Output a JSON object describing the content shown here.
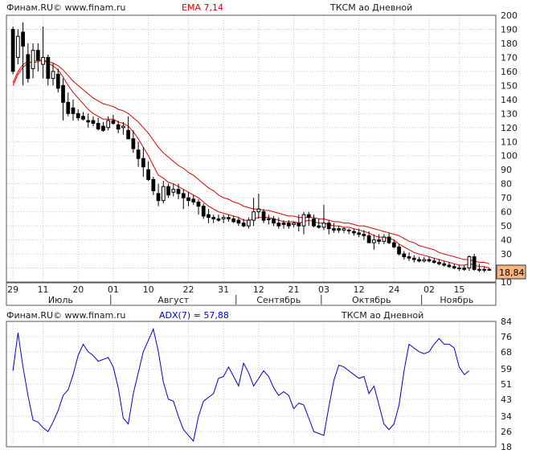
{
  "price_panel": {
    "source_label": "Финам.RU© www.finam.ru",
    "indicator_label": "EMA 7,14",
    "ticker_label": "ТКСМ ао Дневной",
    "last_value": "18,84",
    "colors": {
      "ema_fast": "#e00000",
      "ema_slow": "#e00000",
      "candle": "#000000",
      "grid": "#c8c8c8"
    }
  },
  "adx_panel": {
    "source_label": "Финам.RU© www.finam.ru",
    "indicator_label": "ADX(7) = 57,88",
    "ticker_label": "ТКСМ ао Дневной",
    "colors": {
      "line": "#0000cc",
      "grid": "#c8c8c8"
    }
  },
  "chart_data": [
    {
      "type": "candlestick",
      "title": "ТКСМ ао Дневной",
      "ylim": [
        10,
        200
      ],
      "yticks": [
        10,
        20,
        30,
        40,
        50,
        60,
        70,
        80,
        90,
        100,
        110,
        120,
        130,
        140,
        150,
        160,
        170,
        180,
        190,
        200
      ],
      "ytick_labels": [
        "10",
        "20",
        "30",
        "40",
        "50",
        "60",
        "70",
        "80",
        "90",
        "100",
        "110",
        "120",
        "130",
        "140",
        "150",
        "160",
        "170",
        "180",
        "190",
        "200"
      ],
      "day_ticks": [
        {
          "index": 0,
          "label": "29"
        },
        {
          "index": 6,
          "label": "11"
        },
        {
          "index": 13,
          "label": "20"
        },
        {
          "index": 20,
          "label": "01"
        },
        {
          "index": 27,
          "label": "10"
        },
        {
          "index": 35,
          "label": "22"
        },
        {
          "index": 42,
          "label": "31"
        },
        {
          "index": 49,
          "label": "12"
        },
        {
          "index": 56,
          "label": "21"
        },
        {
          "index": 62,
          "label": "03"
        },
        {
          "index": 69,
          "label": "12"
        },
        {
          "index": 76,
          "label": "24"
        },
        {
          "index": 83,
          "label": "02"
        },
        {
          "index": 89,
          "label": "15"
        }
      ],
      "month_labels": [
        {
          "start": 0,
          "end": 20,
          "label": "Июль"
        },
        {
          "start": 20,
          "end": 45,
          "label": "Август"
        },
        {
          "start": 45,
          "end": 62,
          "label": "Сентябрь"
        },
        {
          "start": 62,
          "end": 82,
          "label": "Октябрь"
        },
        {
          "start": 82,
          "end": 96,
          "label": "Ноябрь"
        }
      ],
      "last_value": 18.84,
      "candles": [
        [
          190,
          192,
          158,
          160
        ],
        [
          170,
          190,
          165,
          185
        ],
        [
          188,
          195,
          150,
          178
        ],
        [
          172,
          180,
          152,
          155
        ],
        [
          162,
          180,
          155,
          175
        ],
        [
          175,
          180,
          160,
          168
        ],
        [
          165,
          192,
          155,
          170
        ],
        [
          170,
          172,
          150,
          155
        ],
        [
          155,
          166,
          150,
          160
        ],
        [
          158,
          162,
          145,
          148
        ],
        [
          150,
          155,
          125,
          138
        ],
        [
          138,
          145,
          128,
          130
        ],
        [
          134,
          140,
          125,
          130
        ],
        [
          130,
          133,
          125,
          127
        ],
        [
          128,
          131,
          125,
          126
        ],
        [
          125,
          130,
          120,
          124
        ],
        [
          125,
          128,
          121,
          123
        ],
        [
          123,
          127,
          118,
          119
        ],
        [
          121,
          124,
          117,
          118
        ],
        [
          120,
          128,
          118,
          125
        ],
        [
          125,
          129,
          122,
          123
        ],
        [
          122,
          125,
          116,
          119
        ],
        [
          120,
          124,
          115,
          121
        ],
        [
          118,
          128,
          112,
          112
        ],
        [
          112,
          118,
          102,
          105
        ],
        [
          104,
          110,
          92,
          98
        ],
        [
          98,
          106,
          85,
          92
        ],
        [
          90,
          96,
          82,
          83
        ],
        [
          83,
          85,
          72,
          75
        ],
        [
          73,
          80,
          64,
          68
        ],
        [
          68,
          82,
          66,
          78
        ],
        [
          78,
          80,
          70,
          72
        ],
        [
          74,
          80,
          71,
          76
        ],
        [
          76,
          80,
          69,
          73
        ],
        [
          73,
          76,
          62,
          70
        ],
        [
          70,
          74,
          64,
          68
        ],
        [
          69,
          72,
          65,
          67
        ],
        [
          67,
          69,
          58,
          64
        ],
        [
          64,
          66,
          55,
          57
        ],
        [
          58,
          62,
          52,
          56
        ],
        [
          56,
          58,
          52,
          55
        ],
        [
          55,
          58,
          53,
          54
        ],
        [
          55,
          58,
          52,
          56
        ],
        [
          56,
          58,
          53,
          55
        ],
        [
          55,
          57,
          52,
          53
        ],
        [
          54,
          56,
          50,
          52
        ],
        [
          52,
          55,
          49,
          50
        ],
        [
          50,
          56,
          48,
          54
        ],
        [
          54,
          70,
          50,
          60
        ],
        [
          60,
          73,
          55,
          62
        ],
        [
          60,
          62,
          52,
          54
        ],
        [
          55,
          58,
          51,
          55
        ],
        [
          55,
          57,
          50,
          52
        ],
        [
          52,
          56,
          48,
          50
        ],
        [
          52,
          54,
          48,
          51
        ],
        [
          52,
          54,
          48,
          50
        ],
        [
          51,
          53,
          49,
          52
        ],
        [
          52,
          58,
          46,
          50
        ],
        [
          50,
          60,
          44,
          58
        ],
        [
          58,
          60,
          50,
          56
        ],
        [
          55,
          58,
          49,
          50
        ],
        [
          50,
          55,
          48,
          49
        ],
        [
          49,
          65,
          47,
          52
        ],
        [
          52,
          54,
          44,
          48
        ],
        [
          48,
          52,
          45,
          47
        ],
        [
          48,
          50,
          45,
          47
        ],
        [
          47,
          49,
          45,
          48
        ],
        [
          47,
          48,
          44,
          47
        ],
        [
          46,
          48,
          43,
          45
        ],
        [
          45,
          48,
          42,
          44
        ],
        [
          44,
          47,
          40,
          43
        ],
        [
          43,
          46,
          38,
          38
        ],
        [
          38,
          44,
          33,
          40
        ],
        [
          40,
          44,
          37,
          39
        ],
        [
          39,
          44,
          37,
          42
        ],
        [
          42,
          45,
          37,
          38
        ],
        [
          38,
          40,
          34,
          35
        ],
        [
          35,
          37,
          29,
          30
        ],
        [
          30,
          32,
          26,
          28
        ],
        [
          28,
          31,
          25,
          27
        ],
        [
          27,
          29,
          24,
          26
        ],
        [
          26,
          28,
          24,
          25
        ],
        [
          25,
          28,
          24,
          26
        ],
        [
          26,
          28,
          24,
          25
        ],
        [
          25,
          27,
          23,
          24
        ],
        [
          24,
          26,
          22,
          23
        ],
        [
          23,
          25,
          21,
          22
        ],
        [
          22,
          24,
          20,
          21
        ],
        [
          21,
          23,
          19,
          20
        ],
        [
          20,
          22,
          18,
          20
        ],
        [
          20,
          22,
          18,
          19
        ],
        [
          20,
          29,
          18,
          28
        ],
        [
          28,
          30,
          18,
          19
        ],
        [
          19,
          23,
          17,
          19
        ],
        [
          19,
          21,
          17,
          19
        ],
        [
          19,
          20,
          18,
          18.84
        ]
      ],
      "series": [
        {
          "name": "EMA 7",
          "values": [
            152,
            160,
            165,
            167,
            166,
            167,
            168,
            166,
            164,
            161,
            156,
            150,
            145,
            141,
            137,
            133,
            130,
            128,
            126,
            126,
            126,
            124,
            123,
            121,
            117,
            112,
            106,
            100,
            93,
            86,
            84,
            81,
            80,
            78,
            76,
            74,
            72,
            70,
            67,
            64,
            62,
            60,
            59,
            58,
            57,
            56,
            54,
            54,
            55,
            56,
            56,
            56,
            55,
            54,
            53,
            53,
            53,
            52,
            53,
            54,
            53,
            52,
            52,
            51,
            50,
            50,
            49,
            49,
            48,
            47,
            46,
            45,
            43,
            42,
            42,
            41,
            40,
            37,
            35,
            33,
            31,
            30,
            29,
            28,
            27,
            26,
            25,
            24,
            23,
            22,
            22,
            23,
            22,
            21,
            21,
            20
          ]
        },
        {
          "name": "EMA 14",
          "values": [
            150,
            158,
            163,
            166,
            167,
            168,
            168,
            167,
            166,
            164,
            161,
            157,
            153,
            150,
            147,
            144,
            141,
            139,
            137,
            136,
            135,
            133,
            132,
            130,
            127,
            124,
            120,
            116,
            111,
            106,
            102,
            99,
            96,
            93,
            91,
            88,
            86,
            83,
            80,
            77,
            75,
            72,
            70,
            69,
            67,
            66,
            64,
            63,
            62,
            62,
            61,
            61,
            60,
            59,
            58,
            57,
            57,
            56,
            56,
            56,
            56,
            55,
            55,
            54,
            53,
            53,
            52,
            52,
            51,
            50,
            50,
            49,
            48,
            47,
            46,
            45,
            44,
            43,
            41,
            39,
            38,
            36,
            35,
            34,
            33,
            31,
            30,
            29,
            28,
            27,
            26,
            26,
            25,
            24,
            24,
            23
          ]
        }
      ]
    },
    {
      "type": "line",
      "title": "ТКСМ ао Дневной",
      "ylim": [
        18,
        84
      ],
      "yticks": [
        18,
        26,
        34,
        43,
        51,
        59,
        68,
        76,
        84
      ],
      "ytick_labels": [
        "18",
        "26",
        "34",
        "43",
        "51",
        "59",
        "68",
        "76",
        "84"
      ],
      "series": [
        {
          "name": "ADX(7) = 57,88",
          "values": [
            58,
            78,
            60,
            45,
            32,
            31,
            28,
            26,
            31,
            37,
            45,
            48,
            56,
            66,
            72,
            68,
            66,
            63,
            64,
            65,
            60,
            49,
            33,
            30,
            46,
            57,
            68,
            74,
            80,
            68,
            52,
            43,
            42,
            34,
            27,
            24,
            21,
            34,
            42,
            44,
            46,
            54,
            55,
            60,
            55,
            50,
            62,
            57,
            50,
            54,
            58,
            55,
            49,
            45,
            47,
            45,
            38,
            41,
            40,
            33,
            26,
            25,
            24,
            39,
            53,
            61,
            60,
            58,
            56,
            54,
            55,
            46,
            50,
            40,
            30,
            27,
            30,
            40,
            58,
            72,
            70,
            68,
            67,
            68,
            72,
            75,
            72,
            72,
            70,
            60,
            56,
            58
          ]
        }
      ]
    }
  ]
}
